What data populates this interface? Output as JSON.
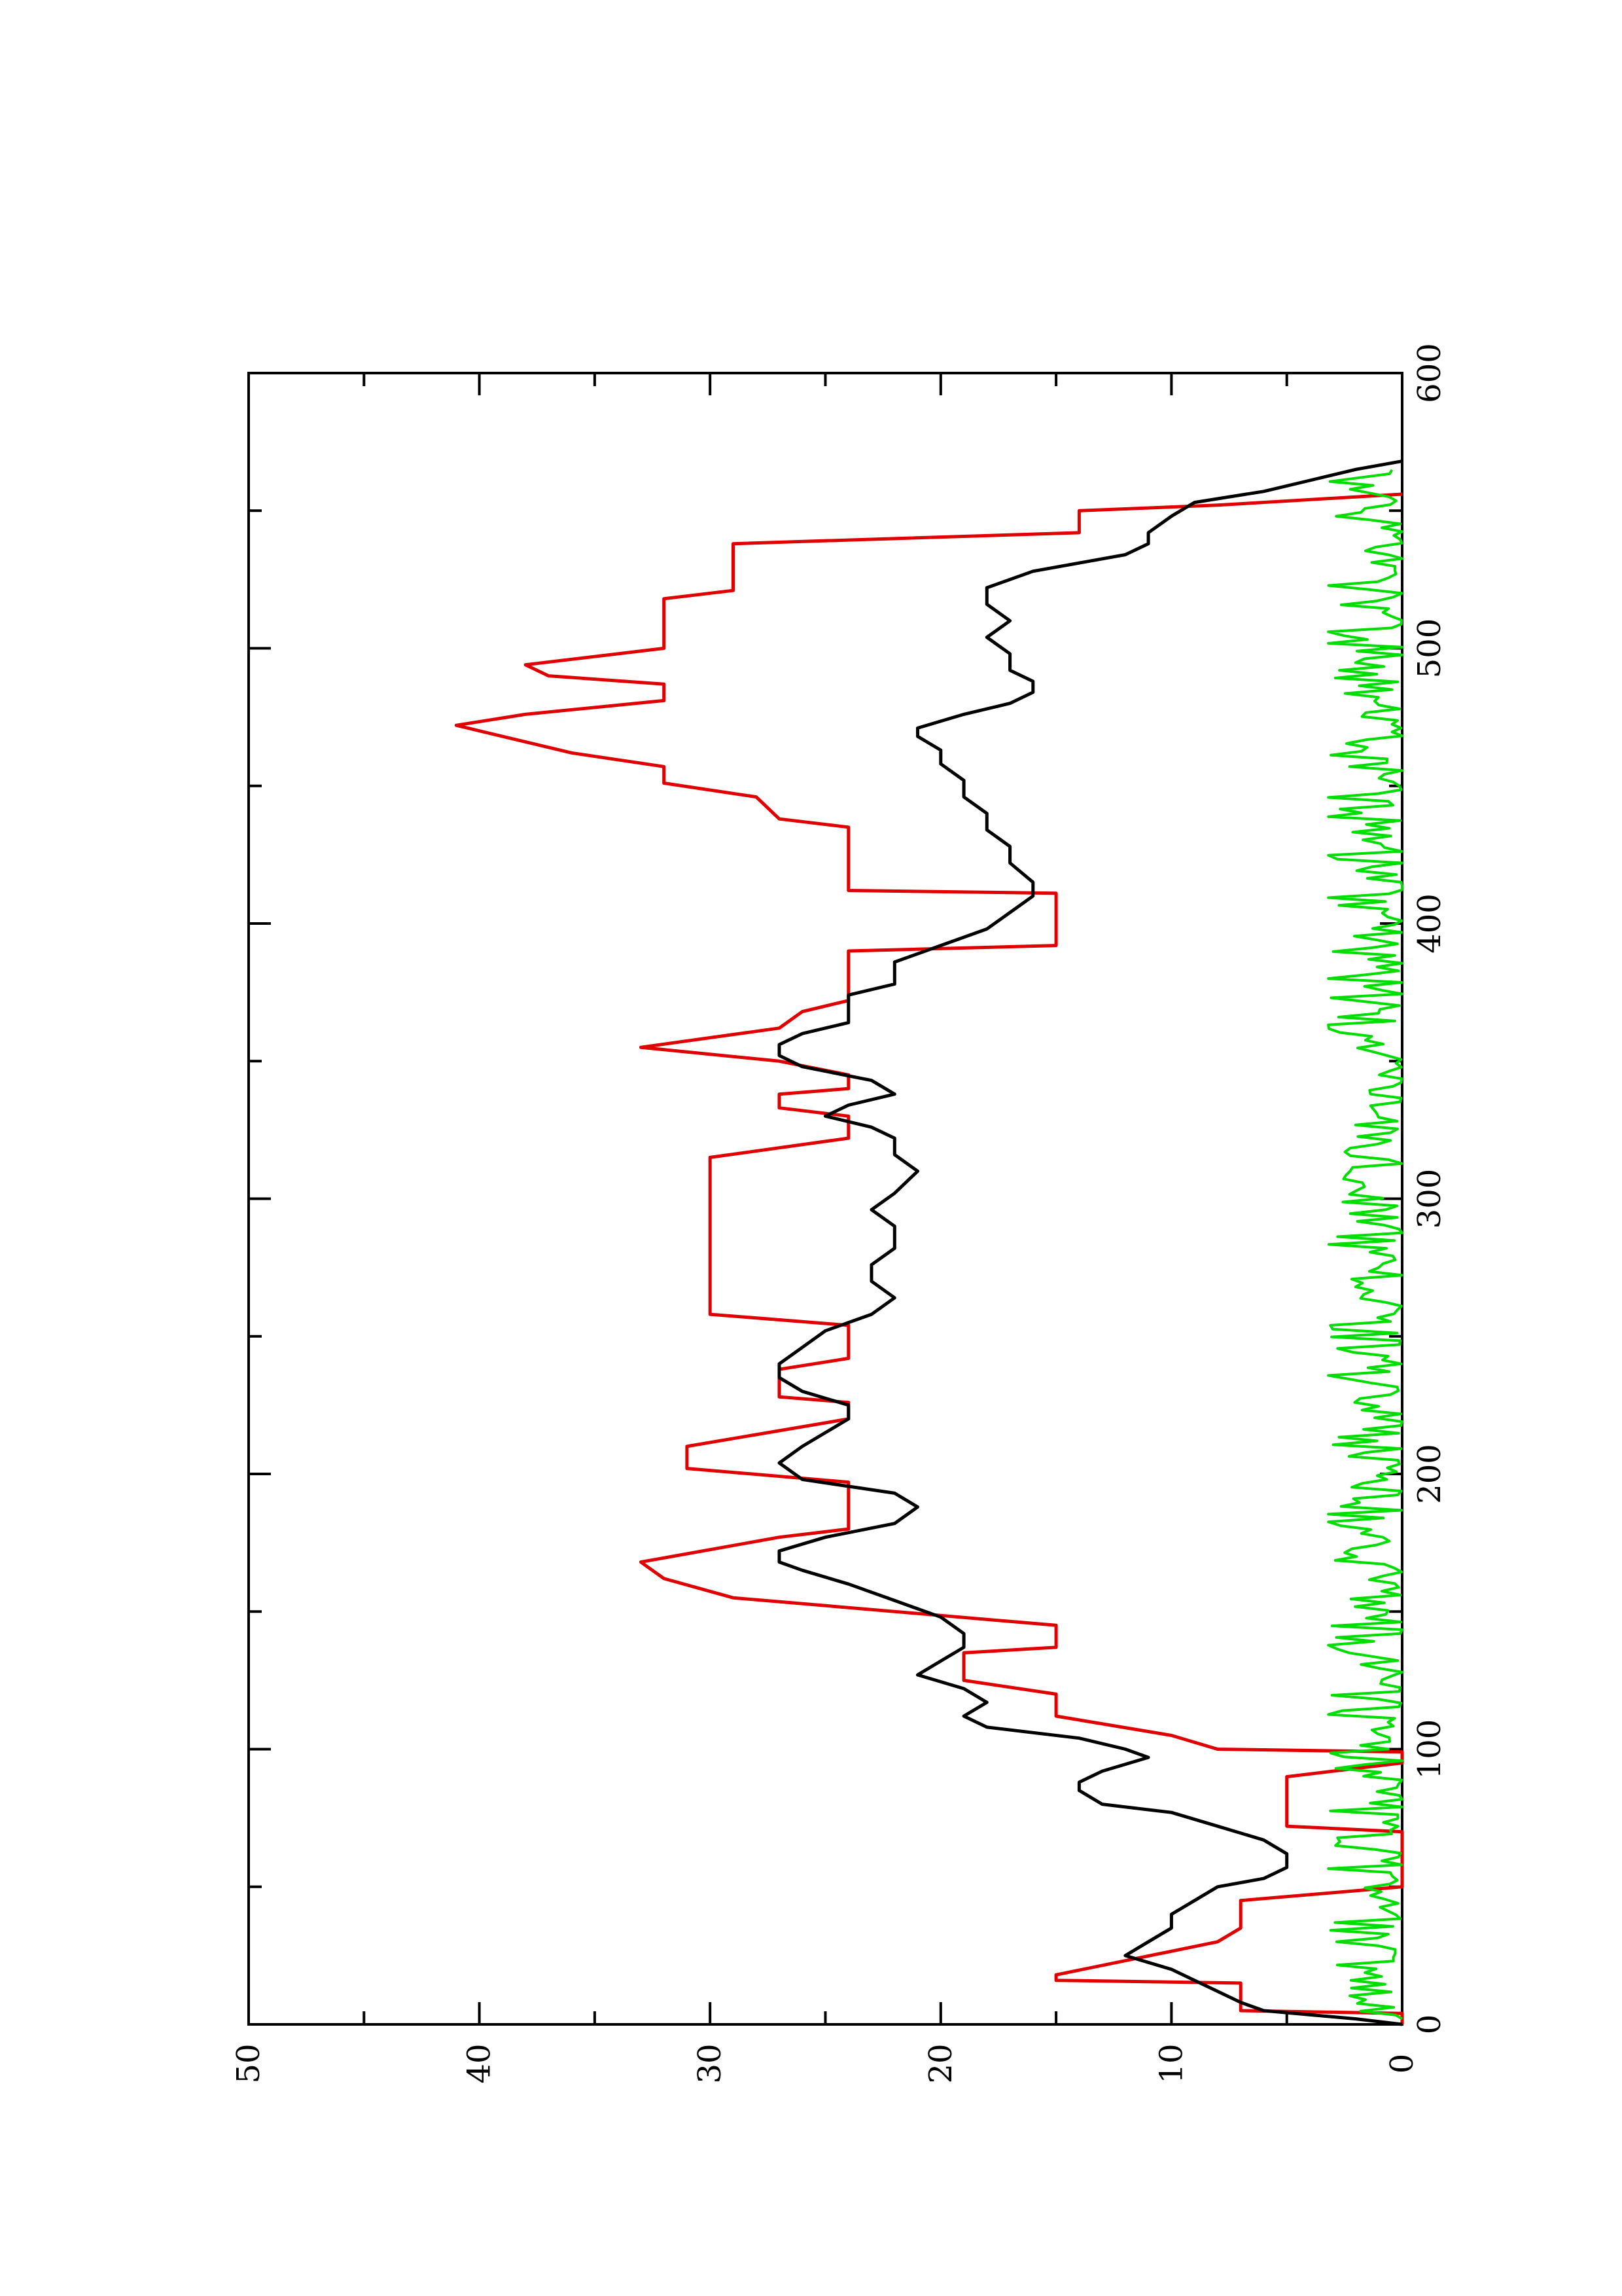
{
  "chart_data": {
    "type": "line",
    "rotation": "rotated 90 degrees counter-clockwise",
    "xlim": [
      0,
      600
    ],
    "ylim": [
      0,
      50
    ],
    "x_ticks_major": [
      0,
      100,
      200,
      300,
      400,
      500,
      600
    ],
    "x_ticks_minor": [
      50,
      150,
      250,
      350,
      450,
      550
    ],
    "y_ticks_major": [
      0,
      10,
      20,
      30,
      40,
      50
    ],
    "y_ticks_minor": [
      5,
      15,
      25,
      35,
      45
    ],
    "x_tick_labels": [
      "0",
      "100",
      "200",
      "300",
      "400",
      "500",
      "600"
    ],
    "y_tick_labels": [
      "0",
      "10",
      "20",
      "30",
      "40",
      "50"
    ],
    "grid": false,
    "legend": "none",
    "series": [
      {
        "color": "#e00000",
        "points": [
          [
            0,
            0
          ],
          [
            4,
            0
          ],
          [
            5,
            7
          ],
          [
            15,
            7
          ],
          [
            16,
            15
          ],
          [
            18,
            15
          ],
          [
            30,
            8
          ],
          [
            35,
            7
          ],
          [
            45,
            7
          ],
          [
            50,
            0
          ],
          [
            70,
            0
          ],
          [
            72,
            5
          ],
          [
            90,
            5
          ],
          [
            95,
            0
          ],
          [
            99,
            0
          ],
          [
            100,
            8
          ],
          [
            105,
            10
          ],
          [
            112,
            15
          ],
          [
            120,
            15
          ],
          [
            125,
            19
          ],
          [
            135,
            19
          ],
          [
            137,
            15
          ],
          [
            145,
            15
          ],
          [
            155,
            29
          ],
          [
            162,
            32
          ],
          [
            168,
            33
          ],
          [
            177,
            27
          ],
          [
            180,
            24
          ],
          [
            197,
            24
          ],
          [
            202,
            31
          ],
          [
            210,
            31
          ],
          [
            220,
            24
          ],
          [
            226,
            24
          ],
          [
            228,
            27
          ],
          [
            238,
            27
          ],
          [
            242,
            24
          ],
          [
            254,
            24
          ],
          [
            258,
            30
          ],
          [
            315,
            30
          ],
          [
            322,
            24
          ],
          [
            330,
            24
          ],
          [
            333,
            27
          ],
          [
            338,
            27
          ],
          [
            340,
            24
          ],
          [
            345,
            24
          ],
          [
            350,
            27
          ],
          [
            355,
            33
          ],
          [
            362,
            27
          ],
          [
            368,
            26
          ],
          [
            372,
            24
          ],
          [
            390,
            24
          ],
          [
            392,
            15
          ],
          [
            411,
            15
          ],
          [
            412,
            24
          ],
          [
            435,
            24
          ],
          [
            438,
            27
          ],
          [
            446,
            28
          ],
          [
            451,
            32
          ],
          [
            457,
            32
          ],
          [
            462,
            36
          ],
          [
            472,
            41
          ],
          [
            476,
            38
          ],
          [
            481,
            32
          ],
          [
            487,
            32
          ],
          [
            490,
            37
          ],
          [
            494,
            38
          ],
          [
            500,
            32
          ],
          [
            518,
            32
          ],
          [
            521,
            29
          ],
          [
            538,
            29
          ],
          [
            542,
            14
          ],
          [
            550,
            14
          ],
          [
            552,
            8
          ],
          [
            556,
            0
          ]
        ]
      },
      {
        "color": "#000000",
        "points": [
          [
            0,
            0
          ],
          [
            2,
            2
          ],
          [
            5,
            6
          ],
          [
            8,
            7
          ],
          [
            12,
            8
          ],
          [
            16,
            9
          ],
          [
            20,
            10
          ],
          [
            25,
            12
          ],
          [
            30,
            11
          ],
          [
            35,
            10
          ],
          [
            40,
            10
          ],
          [
            45,
            9
          ],
          [
            50,
            8
          ],
          [
            53,
            6
          ],
          [
            57,
            5
          ],
          [
            62,
            5
          ],
          [
            67,
            6
          ],
          [
            72,
            8
          ],
          [
            77,
            10
          ],
          [
            80,
            13
          ],
          [
            85,
            14
          ],
          [
            88,
            14
          ],
          [
            92,
            13
          ],
          [
            97,
            11
          ],
          [
            100,
            12
          ],
          [
            104,
            14
          ],
          [
            108,
            18
          ],
          [
            112,
            19
          ],
          [
            117,
            18
          ],
          [
            122,
            19
          ],
          [
            127,
            21
          ],
          [
            132,
            20
          ],
          [
            137,
            19
          ],
          [
            142,
            19
          ],
          [
            148,
            20
          ],
          [
            154,
            22
          ],
          [
            160,
            24
          ],
          [
            165,
            26
          ],
          [
            168,
            27
          ],
          [
            172,
            27
          ],
          [
            177,
            25
          ],
          [
            182,
            22
          ],
          [
            188,
            21
          ],
          [
            193,
            22
          ],
          [
            198,
            26
          ],
          [
            204,
            27
          ],
          [
            210,
            26
          ],
          [
            215,
            25
          ],
          [
            220,
            24
          ],
          [
            225,
            24
          ],
          [
            230,
            26
          ],
          [
            235,
            27
          ],
          [
            240,
            27
          ],
          [
            246,
            26
          ],
          [
            252,
            25
          ],
          [
            258,
            23
          ],
          [
            264,
            22
          ],
          [
            270,
            23
          ],
          [
            276,
            23
          ],
          [
            282,
            22
          ],
          [
            290,
            22
          ],
          [
            296,
            23
          ],
          [
            302,
            22
          ],
          [
            310,
            21
          ],
          [
            316,
            22
          ],
          [
            322,
            22
          ],
          [
            326,
            23
          ],
          [
            330,
            25
          ],
          [
            334,
            24
          ],
          [
            338,
            22
          ],
          [
            343,
            23
          ],
          [
            348,
            26
          ],
          [
            352,
            27
          ],
          [
            356,
            27
          ],
          [
            360,
            26
          ],
          [
            364,
            24
          ],
          [
            370,
            24
          ],
          [
            374,
            24
          ],
          [
            378,
            22
          ],
          [
            386,
            22
          ],
          [
            392,
            20
          ],
          [
            398,
            18
          ],
          [
            404,
            17
          ],
          [
            410,
            16
          ],
          [
            415,
            16
          ],
          [
            422,
            17
          ],
          [
            428,
            17
          ],
          [
            434,
            18
          ],
          [
            440,
            18
          ],
          [
            446,
            19
          ],
          [
            452,
            19
          ],
          [
            458,
            20
          ],
          [
            463,
            20
          ],
          [
            468,
            21
          ],
          [
            471,
            21
          ],
          [
            476,
            19
          ],
          [
            480,
            17
          ],
          [
            484,
            16
          ],
          [
            488,
            16
          ],
          [
            492,
            17
          ],
          [
            498,
            17
          ],
          [
            504,
            18
          ],
          [
            510,
            17
          ],
          [
            516,
            18
          ],
          [
            522,
            18
          ],
          [
            528,
            16
          ],
          [
            534,
            12
          ],
          [
            538,
            11
          ],
          [
            542,
            11
          ],
          [
            548,
            10
          ],
          [
            553,
            9
          ],
          [
            557,
            6
          ],
          [
            561,
            4
          ],
          [
            565,
            2
          ],
          [
            568,
            0
          ]
        ]
      },
      {
        "color": "#00dd00",
        "points": "generated"
      }
    ]
  }
}
